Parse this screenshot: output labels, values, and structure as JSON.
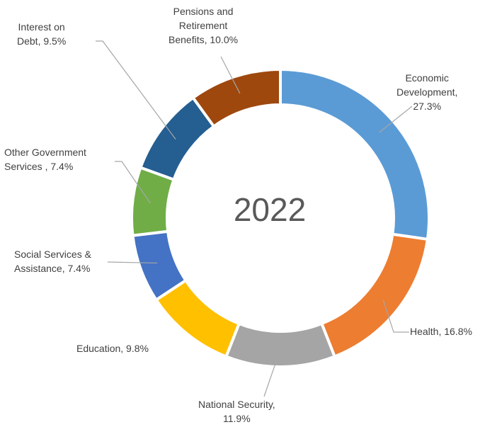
{
  "chart_data": {
    "type": "donut",
    "center_label": "2022",
    "slices": [
      {
        "name": "Economic Development",
        "value": 27.3,
        "label": "Economic\nDevelopment,\n27.3%",
        "color": "#5B9BD5"
      },
      {
        "name": "Health",
        "value": 16.8,
        "label": "Health, 16.8%",
        "color": "#ED7D31"
      },
      {
        "name": "National Security",
        "value": 11.9,
        "label": "National Security,\n11.9%",
        "color": "#A5A5A5"
      },
      {
        "name": "Education",
        "value": 9.8,
        "label": "Education, 9.8%",
        "color": "#FFC000"
      },
      {
        "name": "Social Services & Assistance",
        "value": 7.4,
        "label": "Social Services &\nAssistance, 7.4%",
        "color": "#4472C4"
      },
      {
        "name": "Other Government Services",
        "value": 7.4,
        "label": "Other Government\nServices , 7.4%",
        "color": "#70AD47"
      },
      {
        "name": "Interest on Debt",
        "value": 9.5,
        "label": "Interest on\nDebt, 9.5%",
        "color": "#255E91"
      },
      {
        "name": "Pensions and Retirement Benefits",
        "value": 10.0,
        "label": "Pensions and\nRetirement\nBenefits, 10.0%",
        "color": "#9E480E"
      }
    ]
  }
}
